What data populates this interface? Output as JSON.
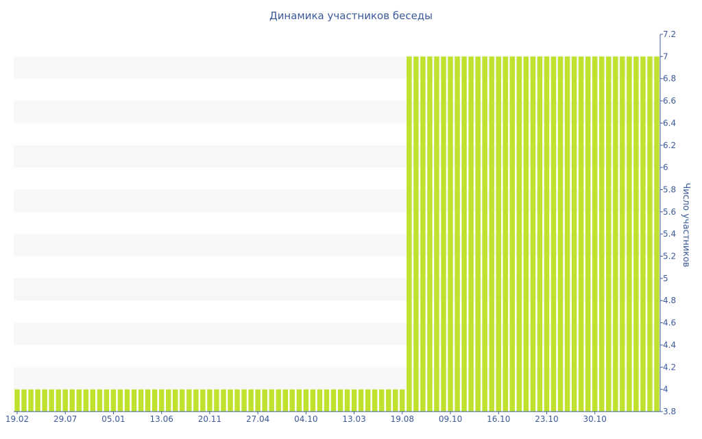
{
  "chart_data": {
    "type": "bar",
    "title": "Динамика участников беседы",
    "xlabel": "",
    "ylabel": "Число участников",
    "ylim": [
      3.8,
      7.2
    ],
    "yticks": [
      3.8,
      4,
      4.2,
      4.4,
      4.6,
      4.8,
      5,
      5.2,
      5.4,
      5.6,
      5.8,
      6,
      6.2,
      6.4,
      6.6,
      6.8,
      7,
      7.2
    ],
    "y_axis_side": "right",
    "grid": "alternating horizontal bands",
    "legend": "none",
    "bar_color": "#bfe22e",
    "band_color": "#f7f7f7",
    "text_color": "#3b5998",
    "x_tick_labels": [
      "19.02",
      "29.07",
      "05.01",
      "13.06",
      "20.11",
      "27.04",
      "04.10",
      "13.03",
      "19.08",
      "09.10",
      "16.10",
      "23.10",
      "30.10"
    ],
    "series": [
      {
        "values": [
          4,
          4,
          4,
          4,
          4,
          4,
          4,
          4,
          4,
          4,
          4,
          4,
          4,
          4,
          4,
          4,
          4,
          4,
          4,
          4,
          4,
          4,
          4,
          4,
          4,
          4,
          4,
          4,
          4,
          4,
          4,
          4,
          4,
          4,
          4,
          4,
          4,
          4,
          4,
          4,
          4,
          4,
          4,
          4,
          4,
          4,
          4,
          4,
          4,
          4,
          4,
          4,
          4,
          4,
          4,
          4,
          4,
          7,
          7,
          7,
          7,
          7,
          7,
          7,
          7,
          7,
          7,
          7,
          7,
          7,
          7,
          7,
          7,
          7,
          7,
          7,
          7,
          7,
          7,
          7,
          7,
          7,
          7,
          7,
          7,
          7,
          7,
          7,
          7,
          7,
          7,
          7,
          7,
          7
        ]
      }
    ]
  }
}
